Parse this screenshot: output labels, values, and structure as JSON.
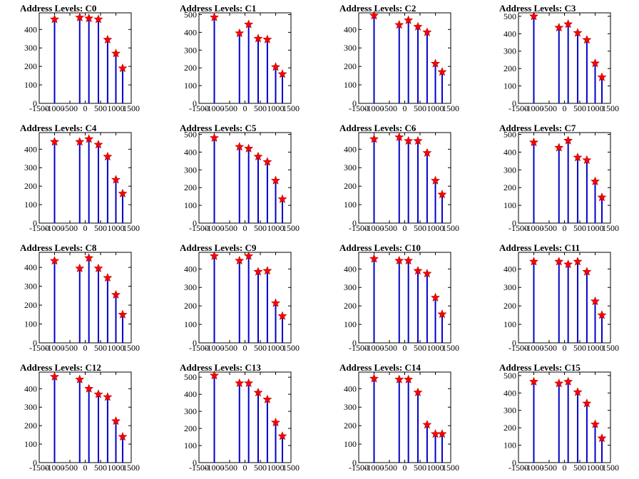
{
  "chart_data": [
    {
      "type": "bar",
      "title": "Address Levels: C0",
      "xlim": [
        -1500,
        1500
      ],
      "ylim": [
        0,
        490
      ],
      "yticks": [
        0,
        100,
        200,
        300,
        400
      ],
      "xticks": [
        -1500,
        -1000,
        -500,
        0,
        500,
        1000,
        1500
      ],
      "x": [
        -1000,
        -180,
        120,
        430,
        730,
        1000,
        1220
      ],
      "peaks": [
        455,
        465,
        460,
        455,
        345,
        270,
        190
      ]
    },
    {
      "type": "bar",
      "title": "Address Levels: C1",
      "xlim": [
        -1500,
        1500
      ],
      "ylim": [
        0,
        510
      ],
      "yticks": [
        0,
        100,
        200,
        300,
        400,
        500
      ],
      "xticks": [
        -1500,
        -1000,
        -500,
        0,
        500,
        1000,
        1500
      ],
      "x": [
        -1000,
        -180,
        120,
        430,
        730,
        1000,
        1220
      ],
      "peaks": [
        485,
        395,
        445,
        365,
        360,
        205,
        165
      ]
    },
    {
      "type": "bar",
      "title": "Address Levels: C2",
      "xlim": [
        -1500,
        1500
      ],
      "ylim": [
        0,
        490
      ],
      "yticks": [
        0,
        100,
        200,
        300,
        400
      ],
      "xticks": [
        -1500,
        -1000,
        -500,
        0,
        500,
        1000,
        1500
      ],
      "x": [
        -1000,
        -180,
        120,
        430,
        730,
        1000,
        1220
      ],
      "peaks": [
        475,
        425,
        450,
        415,
        385,
        215,
        170
      ]
    },
    {
      "type": "bar",
      "title": "Address Levels: C3",
      "xlim": [
        -1500,
        1500
      ],
      "ylim": [
        0,
        520
      ],
      "yticks": [
        0,
        100,
        200,
        300,
        400,
        500
      ],
      "xticks": [
        -1500,
        -1000,
        -500,
        0,
        500,
        1000,
        1500
      ],
      "x": [
        -1000,
        -180,
        120,
        430,
        730,
        1000,
        1220
      ],
      "peaks": [
        500,
        435,
        455,
        405,
        365,
        230,
        150
      ]
    },
    {
      "type": "bar",
      "title": "Address Levels: C4",
      "xlim": [
        -1500,
        1500
      ],
      "ylim": [
        0,
        490
      ],
      "yticks": [
        0,
        100,
        200,
        300,
        400
      ],
      "xticks": [
        -1500,
        -1000,
        -500,
        0,
        500,
        1000,
        1500
      ],
      "x": [
        -1000,
        -180,
        120,
        430,
        730,
        1000,
        1220
      ],
      "peaks": [
        440,
        440,
        455,
        425,
        360,
        235,
        160
      ]
    },
    {
      "type": "bar",
      "title": "Address Levels: C5",
      "xlim": [
        -1500,
        1500
      ],
      "ylim": [
        0,
        510
      ],
      "yticks": [
        0,
        100,
        200,
        300,
        400,
        500
      ],
      "xticks": [
        -1500,
        -1000,
        -500,
        0,
        500,
        1000,
        1500
      ],
      "x": [
        -1000,
        -180,
        120,
        430,
        730,
        1000,
        1220
      ],
      "peaks": [
        480,
        430,
        420,
        375,
        345,
        240,
        135
      ]
    },
    {
      "type": "bar",
      "title": "Address Levels: C6",
      "xlim": [
        -1500,
        1500
      ],
      "ylim": [
        0,
        490
      ],
      "yticks": [
        0,
        100,
        200,
        300,
        400
      ],
      "xticks": [
        -1500,
        -1000,
        -500,
        0,
        500,
        1000,
        1500
      ],
      "x": [
        -1000,
        -180,
        120,
        430,
        730,
        1000,
        1220
      ],
      "peaks": [
        455,
        465,
        445,
        445,
        380,
        230,
        155
      ]
    },
    {
      "type": "bar",
      "title": "Address Levels: C7",
      "xlim": [
        -1500,
        1500
      ],
      "ylim": [
        0,
        510
      ],
      "yticks": [
        0,
        100,
        200,
        300,
        400,
        500
      ],
      "xticks": [
        -1500,
        -1000,
        -500,
        0,
        500,
        1000,
        1500
      ],
      "x": [
        -1000,
        -180,
        120,
        430,
        730,
        1000,
        1220
      ],
      "peaks": [
        455,
        425,
        465,
        370,
        355,
        235,
        145
      ]
    },
    {
      "type": "bar",
      "title": "Address Levels: C8",
      "xlim": [
        -1500,
        1500
      ],
      "ylim": [
        0,
        480
      ],
      "yticks": [
        0,
        100,
        200,
        300,
        400
      ],
      "xticks": [
        -1500,
        -1000,
        -500,
        0,
        500,
        1000,
        1500
      ],
      "x": [
        -1000,
        -180,
        120,
        430,
        730,
        1000,
        1220
      ],
      "peaks": [
        435,
        395,
        450,
        395,
        345,
        255,
        150
      ]
    },
    {
      "type": "bar",
      "title": "Address Levels: C9",
      "xlim": [
        -1500,
        1500
      ],
      "ylim": [
        0,
        490
      ],
      "yticks": [
        0,
        100,
        200,
        300,
        400
      ],
      "xticks": [
        -1500,
        -1000,
        -500,
        0,
        500,
        1000,
        1500
      ],
      "x": [
        -1000,
        -180,
        120,
        430,
        730,
        1000,
        1220
      ],
      "peaks": [
        470,
        445,
        470,
        385,
        390,
        215,
        145
      ]
    },
    {
      "type": "bar",
      "title": "Address Levels: C10",
      "xlim": [
        -1500,
        1500
      ],
      "ylim": [
        0,
        490
      ],
      "yticks": [
        0,
        100,
        200,
        300,
        400
      ],
      "xticks": [
        -1500,
        -1000,
        -500,
        0,
        500,
        1000,
        1500
      ],
      "x": [
        -1000,
        -180,
        120,
        430,
        730,
        1000,
        1220
      ],
      "peaks": [
        455,
        445,
        445,
        390,
        375,
        245,
        155
      ]
    },
    {
      "type": "bar",
      "title": "Address Levels: C11",
      "xlim": [
        -1500,
        1500
      ],
      "ylim": [
        0,
        490
      ],
      "yticks": [
        0,
        100,
        200,
        300,
        400
      ],
      "xticks": [
        -1500,
        -1000,
        -500,
        0,
        500,
        1000,
        1500
      ],
      "x": [
        -1000,
        -180,
        120,
        430,
        730,
        1000,
        1220
      ],
      "peaks": [
        440,
        440,
        425,
        440,
        385,
        225,
        150
      ]
    },
    {
      "type": "bar",
      "title": "Address Levels: C12",
      "xlim": [
        -1500,
        1500
      ],
      "ylim": [
        0,
        490
      ],
      "yticks": [
        0,
        100,
        200,
        300,
        400
      ],
      "xticks": [
        -1500,
        -1000,
        -500,
        0,
        500,
        1000,
        1500
      ],
      "x": [
        -1000,
        -180,
        120,
        430,
        730,
        1000,
        1220
      ],
      "peaks": [
        465,
        450,
        400,
        370,
        355,
        225,
        140
      ]
    },
    {
      "type": "bar",
      "title": "Address Levels: C13",
      "xlim": [
        -1500,
        1500
      ],
      "ylim": [
        0,
        530
      ],
      "yticks": [
        0,
        100,
        200,
        300,
        400,
        500
      ],
      "xticks": [
        -1500,
        -1000,
        -500,
        0,
        500,
        1000,
        1500
      ],
      "x": [
        -1000,
        -180,
        120,
        430,
        730,
        1000,
        1220
      ],
      "peaks": [
        510,
        465,
        465,
        410,
        370,
        235,
        155
      ]
    },
    {
      "type": "bar",
      "title": "Address Levels: C14",
      "xlim": [
        -1500,
        1500
      ],
      "ylim": [
        0,
        490
      ],
      "yticks": [
        0,
        100,
        200,
        300,
        400
      ],
      "xticks": [
        -1500,
        -1000,
        -500,
        0,
        500,
        1000,
        1500
      ],
      "x": [
        -1000,
        -180,
        120,
        430,
        730,
        1000,
        1220
      ],
      "peaks": [
        455,
        450,
        450,
        380,
        205,
        155,
        155
      ]
    },
    {
      "type": "bar",
      "title": "Address Levels: C15",
      "xlim": [
        -1500,
        1500
      ],
      "ylim": [
        0,
        520
      ],
      "yticks": [
        0,
        100,
        200,
        300,
        400,
        500
      ],
      "xticks": [
        -1500,
        -1000,
        -500,
        0,
        500,
        1000,
        1500
      ],
      "x": [
        -1000,
        -180,
        120,
        430,
        730,
        1000,
        1220
      ],
      "peaks": [
        465,
        455,
        465,
        405,
        340,
        220,
        140
      ]
    }
  ],
  "colors": {
    "bars": "#0000cc",
    "markers": "#ff0000",
    "axes": "#000000",
    "background": "#ffffff"
  },
  "marker_shape": "star"
}
